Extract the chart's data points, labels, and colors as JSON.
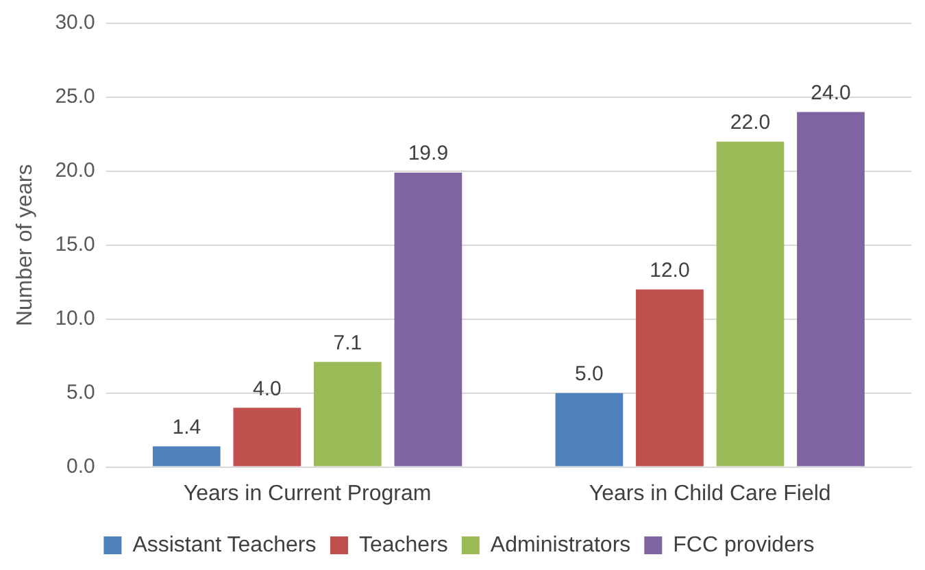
{
  "chart_data": {
    "type": "bar",
    "ylabel": "Number of years",
    "categories": [
      "Years in Current Program",
      "Years in Child Care Field"
    ],
    "series": [
      {
        "name": "Assistant Teachers",
        "color": "#4f81bd",
        "values": [
          1.4,
          5.0
        ],
        "value_labels": [
          "1.4",
          "5.0"
        ]
      },
      {
        "name": "Teachers",
        "color": "#c0504d",
        "values": [
          4.0,
          12.0
        ],
        "value_labels": [
          "4.0",
          "12.0"
        ]
      },
      {
        "name": "Administrators",
        "color": "#9bbb59",
        "values": [
          7.1,
          22.0
        ],
        "value_labels": [
          "7.1",
          "22.0"
        ]
      },
      {
        "name": "FCC providers",
        "color": "#8064a2",
        "values": [
          19.9,
          24.0
        ],
        "value_labels": [
          "19.9",
          "24.0"
        ]
      }
    ],
    "ylim": [
      0,
      30
    ],
    "yticks": [
      {
        "value": 0,
        "label": "0.0"
      },
      {
        "value": 5,
        "label": "5.0"
      },
      {
        "value": 10,
        "label": "10.0"
      },
      {
        "value": 15,
        "label": "15.0"
      },
      {
        "value": 20,
        "label": "20.0"
      },
      {
        "value": 25,
        "label": "25.0"
      },
      {
        "value": 30,
        "label": "30.0"
      }
    ],
    "grid": "y",
    "legend": "bottom"
  }
}
